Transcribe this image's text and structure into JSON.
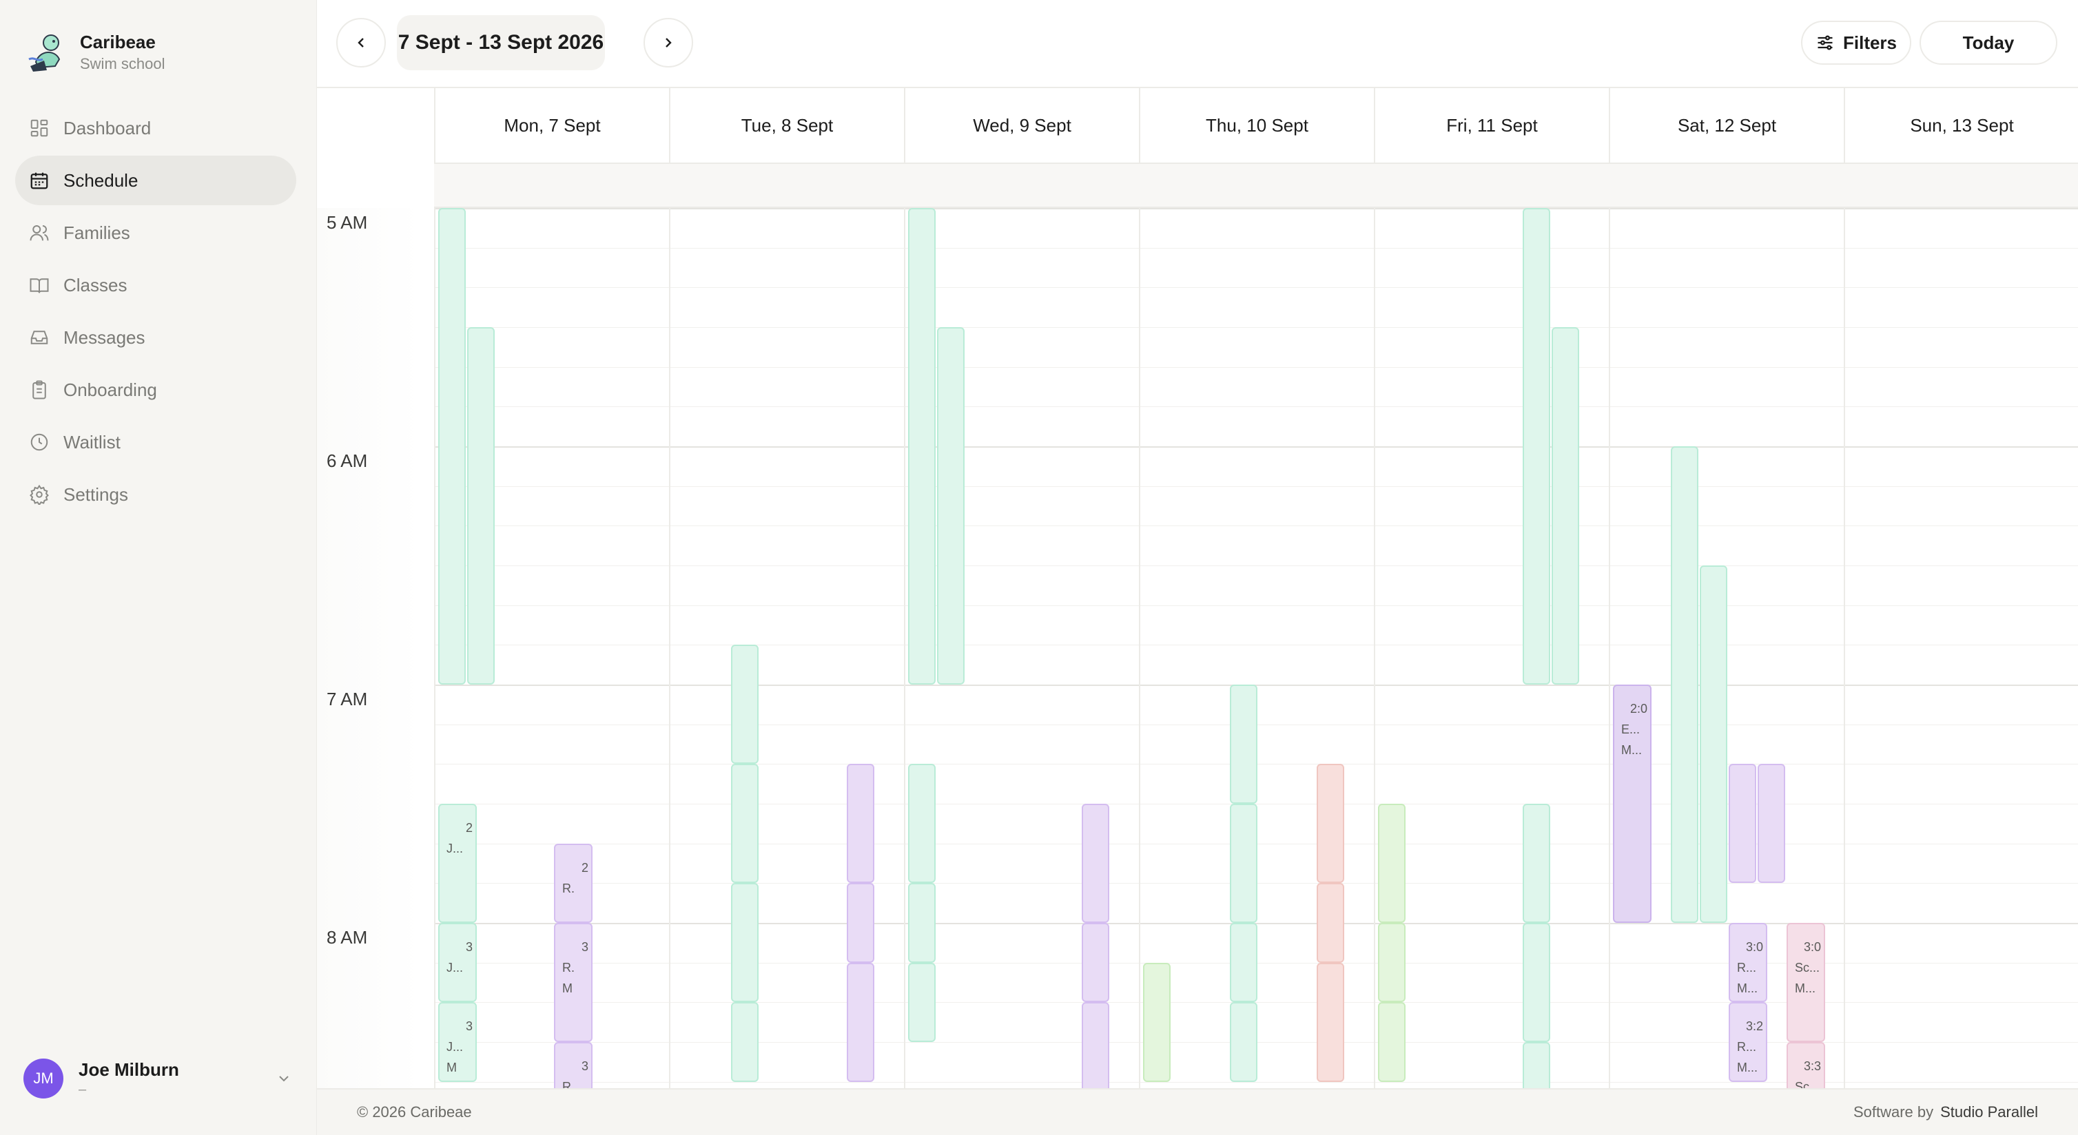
{
  "app": {
    "name": "Caribeae",
    "subtitle": "Swim school",
    "logo_icon": "swimmer-mascot-icon"
  },
  "sidebar": {
    "items": [
      {
        "label": "Dashboard",
        "icon": "dashboard-icon",
        "active": false
      },
      {
        "label": "Schedule",
        "icon": "calendar-icon",
        "active": true
      },
      {
        "label": "Families",
        "icon": "users-icon",
        "active": false
      },
      {
        "label": "Classes",
        "icon": "book-icon",
        "active": false
      },
      {
        "label": "Messages",
        "icon": "inbox-icon",
        "active": false
      },
      {
        "label": "Onboarding",
        "icon": "clipboard-icon",
        "active": false
      },
      {
        "label": "Waitlist",
        "icon": "clock-icon",
        "active": false
      },
      {
        "label": "Settings",
        "icon": "gear-icon",
        "active": false
      }
    ]
  },
  "user": {
    "initials": "JM",
    "name": "Joe Milburn",
    "sub": "–",
    "avatar_color": "#7b55e8"
  },
  "header": {
    "range": "7 Sept - 13 Sept 2026",
    "filters_label": "Filters",
    "today_label": "Today"
  },
  "calendar": {
    "days": [
      "Mon, 7 Sept",
      "Tue, 8 Sept",
      "Wed, 9 Sept",
      "Thu, 10 Sept",
      "Fri, 11 Sept",
      "Sat, 12 Sept",
      "Sun, 13 Sept"
    ],
    "hours": [
      "5 AM",
      "6 AM",
      "7 AM",
      "8 AM"
    ],
    "events": [
      {
        "day": 0,
        "start": "05:00",
        "end": "07:00",
        "lane": 0,
        "color": "green",
        "lines": []
      },
      {
        "day": 0,
        "start": "05:30",
        "end": "07:00",
        "lane": 1,
        "color": "green",
        "lines": []
      },
      {
        "day": 0,
        "start": "07:30",
        "end": "08:00",
        "lane": 0,
        "color": "green",
        "lines": [
          "2",
          "J..."
        ]
      },
      {
        "day": 0,
        "start": "08:00",
        "end": "08:20",
        "lane": 0,
        "color": "green",
        "lines": [
          "3",
          "J..."
        ]
      },
      {
        "day": 0,
        "start": "08:20",
        "end": "08:40",
        "lane": 0,
        "color": "green",
        "lines": [
          "3",
          "J...",
          "M"
        ]
      },
      {
        "day": 0,
        "start": "07:40",
        "end": "08:00",
        "lane": 4,
        "color": "purple",
        "lines": [
          "2",
          "R."
        ]
      },
      {
        "day": 0,
        "start": "08:00",
        "end": "08:30",
        "lane": 4,
        "color": "purple",
        "lines": [
          "3",
          "R.",
          "M"
        ]
      },
      {
        "day": 0,
        "start": "08:30",
        "end": "08:45",
        "lane": 4,
        "color": "purple",
        "lines": [
          "3",
          "R."
        ]
      },
      {
        "day": 1,
        "start": "06:50",
        "end": "07:20",
        "lane": 2,
        "color": "green",
        "lines": []
      },
      {
        "day": 1,
        "start": "07:20",
        "end": "07:50",
        "lane": 2,
        "color": "green",
        "lines": []
      },
      {
        "day": 1,
        "start": "07:50",
        "end": "08:20",
        "lane": 2,
        "color": "green",
        "lines": []
      },
      {
        "day": 1,
        "start": "08:20",
        "end": "08:40",
        "lane": 2,
        "color": "green",
        "lines": []
      },
      {
        "day": 1,
        "start": "07:20",
        "end": "07:50",
        "lane": 6,
        "color": "purple",
        "lines": []
      },
      {
        "day": 1,
        "start": "07:50",
        "end": "08:10",
        "lane": 6,
        "color": "purple",
        "lines": []
      },
      {
        "day": 1,
        "start": "08:10",
        "end": "08:40",
        "lane": 6,
        "color": "purple",
        "lines": []
      },
      {
        "day": 2,
        "start": "05:00",
        "end": "07:00",
        "lane": 0,
        "color": "green",
        "lines": []
      },
      {
        "day": 2,
        "start": "05:30",
        "end": "07:00",
        "lane": 1,
        "color": "green",
        "lines": []
      },
      {
        "day": 2,
        "start": "07:20",
        "end": "07:50",
        "lane": 0,
        "color": "green",
        "lines": []
      },
      {
        "day": 2,
        "start": "07:50",
        "end": "08:10",
        "lane": 0,
        "color": "green",
        "lines": []
      },
      {
        "day": 2,
        "start": "08:10",
        "end": "08:30",
        "lane": 0,
        "color": "green",
        "lines": []
      },
      {
        "day": 2,
        "start": "07:30",
        "end": "08:00",
        "lane": 6,
        "color": "purple",
        "lines": []
      },
      {
        "day": 2,
        "start": "08:00",
        "end": "08:20",
        "lane": 6,
        "color": "purple",
        "lines": []
      },
      {
        "day": 2,
        "start": "08:20",
        "end": "08:45",
        "lane": 6,
        "color": "purple",
        "lines": []
      },
      {
        "day": 3,
        "start": "08:10",
        "end": "08:40",
        "lane": 0,
        "color": "lime",
        "lines": []
      },
      {
        "day": 3,
        "start": "07:00",
        "end": "07:30",
        "lane": 3,
        "color": "green",
        "lines": []
      },
      {
        "day": 3,
        "start": "07:30",
        "end": "08:00",
        "lane": 3,
        "color": "green",
        "lines": []
      },
      {
        "day": 3,
        "start": "08:00",
        "end": "08:20",
        "lane": 3,
        "color": "green",
        "lines": []
      },
      {
        "day": 3,
        "start": "08:20",
        "end": "08:40",
        "lane": 3,
        "color": "green",
        "lines": []
      },
      {
        "day": 3,
        "start": "07:20",
        "end": "07:50",
        "lane": 6,
        "color": "peach",
        "lines": []
      },
      {
        "day": 3,
        "start": "07:50",
        "end": "08:10",
        "lane": 6,
        "color": "peach",
        "lines": []
      },
      {
        "day": 3,
        "start": "08:10",
        "end": "08:40",
        "lane": 6,
        "color": "peach",
        "lines": []
      },
      {
        "day": 4,
        "start": "07:30",
        "end": "08:00",
        "lane": 0,
        "color": "lime",
        "lines": []
      },
      {
        "day": 4,
        "start": "08:00",
        "end": "08:20",
        "lane": 0,
        "color": "lime",
        "lines": []
      },
      {
        "day": 4,
        "start": "08:20",
        "end": "08:40",
        "lane": 0,
        "color": "lime",
        "lines": []
      },
      {
        "day": 4,
        "start": "05:00",
        "end": "07:00",
        "lane": 5,
        "color": "green",
        "lines": []
      },
      {
        "day": 4,
        "start": "05:30",
        "end": "07:00",
        "lane": 6,
        "color": "green",
        "lines": []
      },
      {
        "day": 4,
        "start": "07:30",
        "end": "08:00",
        "lane": 5,
        "color": "green",
        "lines": []
      },
      {
        "day": 4,
        "start": "08:00",
        "end": "08:30",
        "lane": 5,
        "color": "green",
        "lines": []
      },
      {
        "day": 4,
        "start": "08:30",
        "end": "08:45",
        "lane": 5,
        "color": "green",
        "lines": []
      },
      {
        "day": 5,
        "start": "07:00",
        "end": "08:00",
        "lane": 0,
        "color": "purple2",
        "lines": [
          "2:0",
          "E...",
          "M..."
        ]
      },
      {
        "day": 5,
        "start": "06:00",
        "end": "08:00",
        "lane": 2,
        "color": "green",
        "lines": []
      },
      {
        "day": 5,
        "start": "06:30",
        "end": "08:00",
        "lane": 3,
        "color": "green",
        "lines": []
      },
      {
        "day": 5,
        "start": "07:20",
        "end": "07:50",
        "lane": 4,
        "color": "purple",
        "lines": []
      },
      {
        "day": 5,
        "start": "07:20",
        "end": "07:50",
        "lane": 5,
        "color": "purple",
        "lines": []
      },
      {
        "day": 5,
        "start": "08:00",
        "end": "08:20",
        "lane": 4,
        "color": "purple",
        "lines": [
          "3:0",
          "R...",
          "M..."
        ]
      },
      {
        "day": 5,
        "start": "08:20",
        "end": "08:40",
        "lane": 4,
        "color": "purple",
        "lines": [
          "3:2",
          "R...",
          "M..."
        ]
      },
      {
        "day": 5,
        "start": "08:00",
        "end": "08:30",
        "lane": 6,
        "color": "pink",
        "lines": [
          "3:0",
          "Sc...",
          "M..."
        ]
      },
      {
        "day": 5,
        "start": "08:30",
        "end": "08:45",
        "lane": 6,
        "color": "pink",
        "lines": [
          "3:3",
          "Sc..."
        ]
      }
    ]
  },
  "footer": {
    "copyright": "© 2026 Caribeae",
    "credit_prefix": "Software by",
    "credit_name": "Studio Parallel"
  }
}
